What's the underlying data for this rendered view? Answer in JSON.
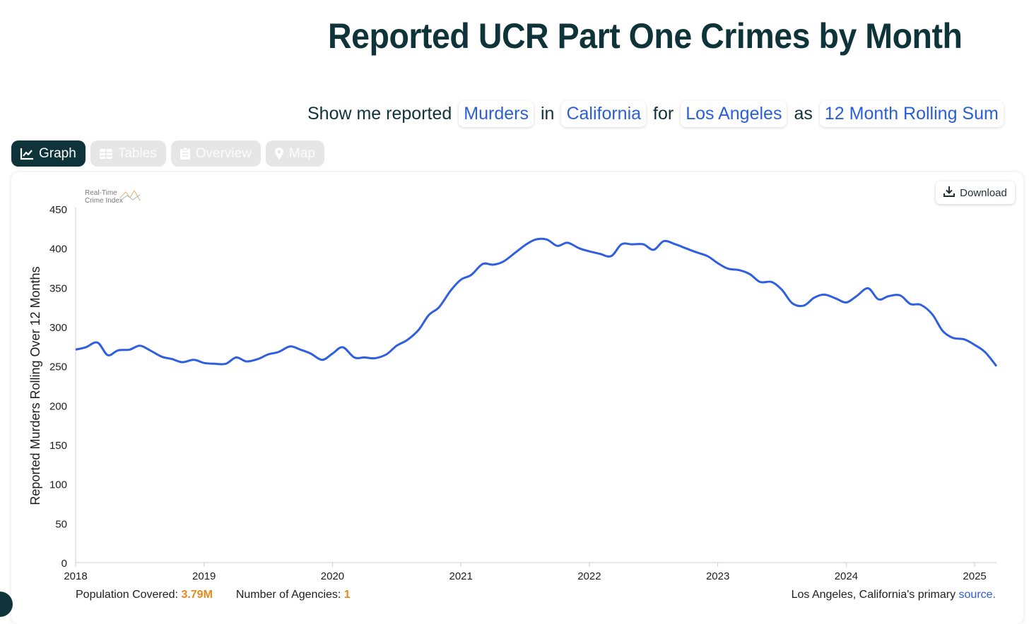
{
  "header": {
    "title": "Reported UCR Part One Crimes by Month"
  },
  "selector": {
    "prefix": "Show me reported",
    "crime": "Murders",
    "in_word": "in",
    "state": "California",
    "for_word": "for",
    "agency": "Los Angeles",
    "as_word": "as",
    "metric": "12 Month Rolling Sum"
  },
  "tabs": [
    {
      "label": "Graph",
      "icon": "line-chart-icon",
      "active": true
    },
    {
      "label": "Tables",
      "icon": "table-icon",
      "active": false
    },
    {
      "label": "Overview",
      "icon": "clipboard-icon",
      "active": false
    },
    {
      "label": "Map",
      "icon": "map-pin-icon",
      "active": false
    }
  ],
  "logo": {
    "line1": "Real-Time",
    "line2": "Crime Index"
  },
  "download": {
    "label": "Download",
    "icon": "download-icon"
  },
  "footer": {
    "population_label": "Population Covered:",
    "population_value": "3.79M",
    "agencies_label": "Number of Agencies:",
    "agencies_value": "1",
    "source_prefix": "Los Angeles, California's primary",
    "source_link": "source."
  },
  "colors": {
    "accent": "#0e3338",
    "line": "#2f5fe0",
    "highlight": "#e58a1f",
    "link": "#2a5fd8"
  },
  "chart_data": {
    "type": "line",
    "title": "",
    "xlabel": "",
    "ylabel": "Reported Murders Rolling Over 12 Months",
    "ylim": [
      0,
      450
    ],
    "yticks": [
      0,
      50,
      100,
      150,
      200,
      250,
      300,
      350,
      400,
      450
    ],
    "xlim": [
      2018,
      2025.17
    ],
    "xticks": [
      "2018",
      "2019",
      "2020",
      "2021",
      "2022",
      "2023",
      "2024",
      "2025"
    ],
    "grid": false,
    "series": [
      {
        "name": "",
        "x": [
          2018.0,
          2018.08,
          2018.17,
          2018.25,
          2018.33,
          2018.42,
          2018.5,
          2018.58,
          2018.67,
          2018.75,
          2018.83,
          2018.92,
          2019.0,
          2019.08,
          2019.17,
          2019.25,
          2019.33,
          2019.42,
          2019.5,
          2019.58,
          2019.67,
          2019.75,
          2019.83,
          2019.92,
          2020.0,
          2020.08,
          2020.17,
          2020.25,
          2020.33,
          2020.42,
          2020.5,
          2020.58,
          2020.67,
          2020.75,
          2020.83,
          2020.92,
          2021.0,
          2021.08,
          2021.17,
          2021.25,
          2021.33,
          2021.42,
          2021.5,
          2021.58,
          2021.67,
          2021.75,
          2021.83,
          2021.92,
          2022.0,
          2022.08,
          2022.17,
          2022.25,
          2022.33,
          2022.42,
          2022.5,
          2022.58,
          2022.67,
          2022.75,
          2022.83,
          2022.92,
          2023.0,
          2023.08,
          2023.17,
          2023.25,
          2023.33,
          2023.42,
          2023.5,
          2023.58,
          2023.67,
          2023.75,
          2023.83,
          2023.92,
          2024.0,
          2024.08,
          2024.17,
          2024.25,
          2024.33,
          2024.42,
          2024.5,
          2024.58,
          2024.67,
          2024.75,
          2024.83,
          2024.92,
          2025.0,
          2025.08,
          2025.17
        ],
        "y": [
          271,
          274,
          280,
          264,
          270,
          271,
          276,
          270,
          262,
          259,
          255,
          258,
          254,
          253,
          253,
          261,
          256,
          259,
          265,
          268,
          275,
          271,
          266,
          258,
          266,
          274,
          261,
          261,
          260,
          265,
          276,
          283,
          296,
          315,
          325,
          346,
          360,
          366,
          380,
          379,
          383,
          394,
          404,
          411,
          411,
          403,
          407,
          400,
          396,
          393,
          390,
          405,
          405,
          405,
          398,
          409,
          405,
          400,
          395,
          390,
          381,
          374,
          372,
          367,
          357,
          357,
          347,
          330,
          327,
          337,
          341,
          336,
          331,
          339,
          349,
          335,
          339,
          340,
          329,
          328,
          316,
          295,
          286,
          284,
          277,
          268,
          250
        ]
      }
    ]
  }
}
